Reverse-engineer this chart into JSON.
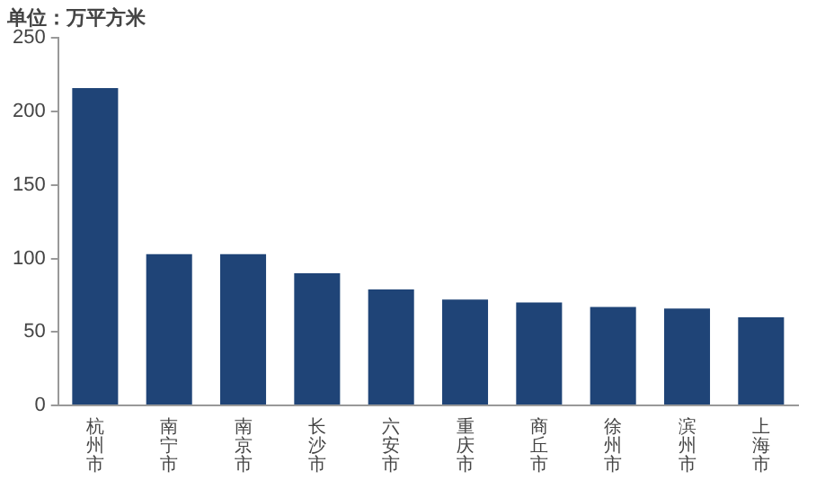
{
  "chart_data": {
    "type": "bar",
    "title": "单位：万平方米",
    "categories": [
      "杭州市",
      "南宁市",
      "南京市",
      "长沙市",
      "六安市",
      "重庆市",
      "商丘市",
      "徐州市",
      "滨州市",
      "上海市"
    ],
    "values": [
      216,
      103,
      103,
      90,
      79,
      72,
      70,
      67,
      66,
      60
    ],
    "color": "#1f4477",
    "ylim": [
      0,
      250
    ],
    "yticks": [
      0,
      50,
      100,
      150,
      200,
      250
    ],
    "grid": false,
    "legend": false
  }
}
